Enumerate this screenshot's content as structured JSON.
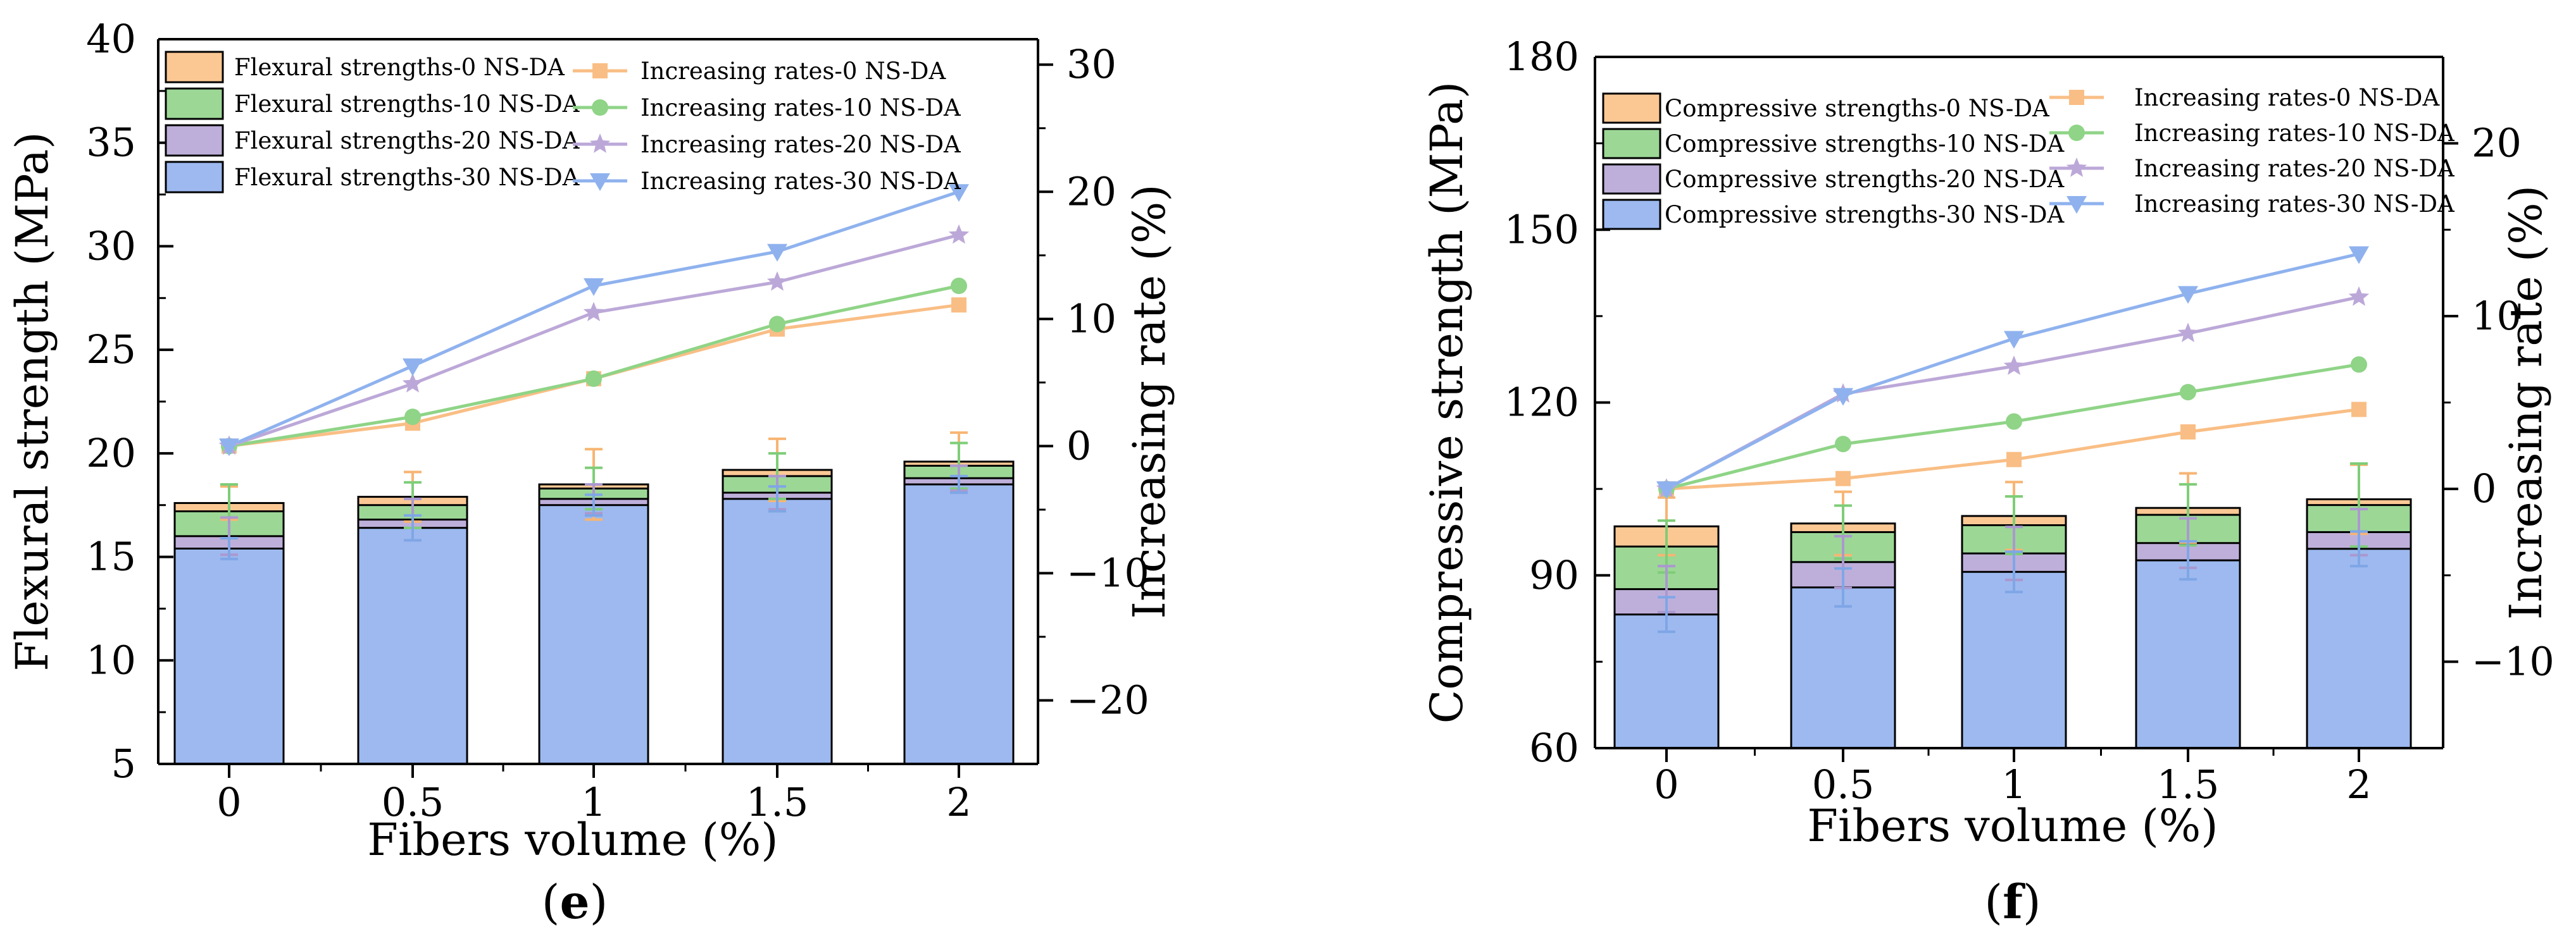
{
  "panels": [
    {
      "id": "e",
      "label_open": "(",
      "label_letter": "e",
      "label_close": ")",
      "legend_left": [
        "Flexural strengths-0 NS-DA",
        "Flexural strengths-10 NS-DA",
        "Flexural strengths-20 NS-DA",
        "Flexural strengths-30 NS-DA"
      ],
      "legend_right": [
        "Increasing rates-0 NS-DA",
        "Increasing rates-10 NS-DA",
        "Increasing rates-20 NS-DA",
        "Increasing rates-30 NS-DA"
      ]
    },
    {
      "id": "f",
      "label_open": "(",
      "label_letter": "f",
      "label_close": ")",
      "legend_left": [
        "Compressive strengths-0 NS-DA",
        "Compressive strengths-10 NS-DA",
        "Compressive strengths-20 NS-DA",
        "Compressive strengths-30 NS-DA"
      ],
      "legend_right": [
        "Increasing rates-0 NS-DA",
        "Increasing rates-10 NS-DA",
        "Increasing rates-20 NS-DA",
        "Increasing rates-30 NS-DA"
      ]
    }
  ],
  "colors": {
    "s0": "#fbc894",
    "s10": "#9cd796",
    "s20": "#beafda",
    "s30": "#9db9ef",
    "line0": "#f9be85",
    "line10": "#8fd487",
    "line20": "#bca8d8",
    "line30": "#8fb2ee"
  },
  "chart_data": [
    {
      "type": "bar",
      "subtype": "overlapping bars with secondary line axis",
      "categories": [
        "0",
        "0.5",
        "1",
        "1.5",
        "2"
      ],
      "xlabel": "Fibers volume (%)",
      "ylabel": "Flexural strength (MPa)",
      "y2label": "Increasing rate (%)",
      "ylim": [
        5,
        40
      ],
      "yticks": [
        5,
        10,
        15,
        20,
        25,
        30,
        35,
        40
      ],
      "y2lim": [
        -25,
        32
      ],
      "y2ticks": [
        -20,
        -10,
        0,
        10,
        20,
        30
      ],
      "bar_series": [
        {
          "name": "Flexural strengths-0 NS-DA",
          "values": [
            17.6,
            17.9,
            18.5,
            19.2,
            19.6
          ],
          "errors": [
            0.8,
            1.2,
            1.7,
            1.5,
            1.4
          ]
        },
        {
          "name": "Flexural strengths-10 NS-DA",
          "values": [
            17.2,
            17.5,
            18.3,
            18.9,
            19.4
          ],
          "errors": [
            1.3,
            1.1,
            1.0,
            1.1,
            1.1
          ]
        },
        {
          "name": "Flexural strengths-20 NS-DA",
          "values": [
            16.0,
            16.8,
            17.8,
            18.1,
            18.8
          ],
          "errors": [
            0.9,
            1.0,
            0.7,
            0.8,
            0.6
          ]
        },
        {
          "name": "Flexural strengths-30 NS-DA",
          "values": [
            15.4,
            16.4,
            17.5,
            17.8,
            18.5
          ],
          "errors": [
            0.5,
            0.6,
            0.5,
            0.6,
            0.4
          ]
        }
      ],
      "line_series": [
        {
          "name": "Increasing rates-0 NS-DA",
          "marker": "square",
          "values": [
            0,
            1.8,
            5.3,
            9.2,
            11.1
          ]
        },
        {
          "name": "Increasing rates-10 NS-DA",
          "marker": "circle",
          "values": [
            0,
            2.3,
            5.3,
            9.6,
            12.6
          ]
        },
        {
          "name": "Increasing rates-20 NS-DA",
          "marker": "star",
          "values": [
            0,
            4.9,
            10.5,
            12.9,
            16.6
          ]
        },
        {
          "name": "Increasing rates-30 NS-DA",
          "marker": "triangle-down",
          "values": [
            0,
            6.3,
            12.6,
            15.3,
            20.0
          ]
        }
      ]
    },
    {
      "type": "bar",
      "subtype": "overlapping bars with secondary line axis",
      "categories": [
        "0",
        "0.5",
        "1",
        "1.5",
        "2"
      ],
      "xlabel": "Fibers volume (%)",
      "ylabel": "Compressive strength (MPa)",
      "y2label": "Increasing rate (%)",
      "ylim": [
        60,
        180
      ],
      "yticks": [
        60,
        90,
        120,
        150,
        180
      ],
      "y2lim": [
        -15,
        25
      ],
      "y2ticks": [
        -10,
        0,
        10,
        20
      ],
      "bar_series": [
        {
          "name": "Compressive strengths-0 NS-DA",
          "values": [
            98.5,
            99.0,
            100.3,
            101.7,
            103.2
          ],
          "errors": [
            5.0,
            5.5,
            5.9,
            6.0,
            6.0
          ]
        },
        {
          "name": "Compressive strengths-10 NS-DA",
          "values": [
            95.0,
            97.5,
            98.7,
            100.5,
            102.2
          ],
          "errors": [
            4.5,
            4.6,
            5.0,
            5.3,
            7.2
          ]
        },
        {
          "name": "Compressive strengths-20 NS-DA",
          "values": [
            87.6,
            92.3,
            93.8,
            95.6,
            97.5
          ],
          "errors": [
            4.0,
            4.5,
            4.6,
            4.3,
            4.0
          ]
        },
        {
          "name": "Compressive strengths-30 NS-DA",
          "values": [
            83.2,
            87.9,
            90.6,
            92.6,
            94.6
          ],
          "errors": [
            3.0,
            3.3,
            3.5,
            3.3,
            3.0
          ]
        }
      ],
      "line_series": [
        {
          "name": "Increasing rates-0 NS-DA",
          "marker": "square",
          "values": [
            0,
            0.6,
            1.7,
            3.3,
            4.6
          ]
        },
        {
          "name": "Increasing rates-10 NS-DA",
          "marker": "circle",
          "values": [
            0,
            2.6,
            3.9,
            5.6,
            7.2
          ]
        },
        {
          "name": "Increasing rates-20 NS-DA",
          "marker": "star",
          "values": [
            0,
            5.5,
            7.1,
            9.0,
            11.1
          ]
        },
        {
          "name": "Increasing rates-30 NS-DA",
          "marker": "triangle-down",
          "values": [
            0,
            5.4,
            8.7,
            11.3,
            13.6
          ]
        }
      ]
    }
  ]
}
